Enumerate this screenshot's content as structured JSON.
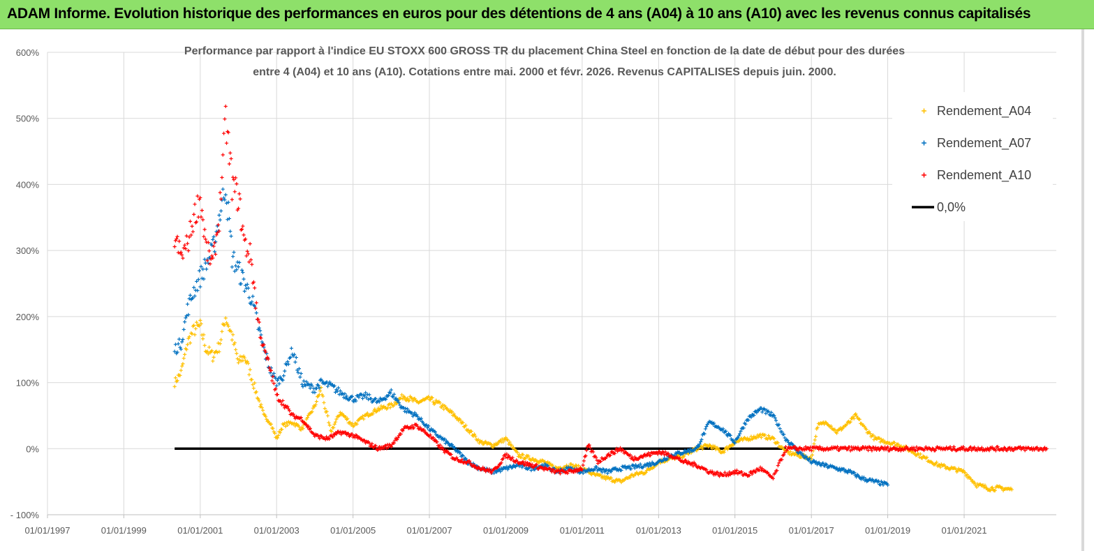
{
  "header": {
    "banner_text": "ADAM Informe. Evolution historique des performances en euros pour des détentions de 4 ans (A04) à 10 ans (A10) avec les revenus connus capitalisés"
  },
  "chart_data": {
    "type": "scatter",
    "title_line1": "Performance par rapport à l'indice EU STOXX 600 GROSS TR  du placement China Steel  en fonction de la date de début pour des durées",
    "title_line2": "entre 4 (A04) et 10 ans (A10). Cotations entre mai. 2000 et févr. 2026. Revenus CAPITALISES depuis juin. 2000.",
    "xlabel": "",
    "ylabel": "",
    "x_tick_labels": [
      "01/01/1997",
      "01/01/1999",
      "01/01/2001",
      "01/01/2003",
      "01/01/2005",
      "01/01/2007",
      "01/01/2009",
      "01/01/2011",
      "01/01/2013",
      "01/01/2015",
      "01/01/2017",
      "01/01/2019",
      "01/01/2021"
    ],
    "y_tick_labels": [
      "600%",
      "500%",
      "400%",
      "300%",
      "200%",
      "100%",
      "0%",
      "- 100%"
    ],
    "xlim": [
      "1997-01-01",
      "2023-06-01"
    ],
    "ylim": [
      -100,
      600
    ],
    "grid": true,
    "legend_position": "top-right",
    "series": [
      {
        "name": "Rendement_A04",
        "color": "#ffc000",
        "marker": "+",
        "points": [
          [
            "2000-05-01",
            100
          ],
          [
            "2000-07-01",
            115
          ],
          [
            "2000-09-01",
            160
          ],
          [
            "2000-11-01",
            180
          ],
          [
            "2001-01-01",
            185
          ],
          [
            "2001-03-01",
            150
          ],
          [
            "2001-05-01",
            140
          ],
          [
            "2001-07-01",
            155
          ],
          [
            "2001-09-01",
            200
          ],
          [
            "2001-11-01",
            170
          ],
          [
            "2002-01-01",
            130
          ],
          [
            "2002-03-01",
            140
          ],
          [
            "2002-05-01",
            110
          ],
          [
            "2002-07-01",
            80
          ],
          [
            "2002-09-01",
            50
          ],
          [
            "2002-11-01",
            40
          ],
          [
            "2003-01-01",
            15
          ],
          [
            "2003-03-01",
            35
          ],
          [
            "2003-06-01",
            40
          ],
          [
            "2003-09-01",
            30
          ],
          [
            "2004-01-01",
            65
          ],
          [
            "2004-03-01",
            90
          ],
          [
            "2004-06-01",
            25
          ],
          [
            "2004-09-01",
            55
          ],
          [
            "2005-01-01",
            35
          ],
          [
            "2005-05-01",
            50
          ],
          [
            "2005-09-01",
            60
          ],
          [
            "2006-01-01",
            65
          ],
          [
            "2006-05-01",
            80
          ],
          [
            "2006-09-01",
            70
          ],
          [
            "2007-01-01",
            75
          ],
          [
            "2007-05-01",
            65
          ],
          [
            "2007-09-01",
            50
          ],
          [
            "2008-01-01",
            30
          ],
          [
            "2008-05-01",
            10
          ],
          [
            "2008-09-01",
            5
          ],
          [
            "2009-01-01",
            15
          ],
          [
            "2009-05-01",
            -10
          ],
          [
            "2009-09-01",
            -15
          ],
          [
            "2010-01-01",
            -20
          ],
          [
            "2010-05-01",
            -30
          ],
          [
            "2010-09-01",
            -25
          ],
          [
            "2011-01-01",
            -30
          ],
          [
            "2011-05-01",
            -40
          ],
          [
            "2011-09-01",
            -45
          ],
          [
            "2012-01-01",
            -50
          ],
          [
            "2012-05-01",
            -40
          ],
          [
            "2012-09-01",
            -35
          ],
          [
            "2013-01-01",
            -20
          ],
          [
            "2013-05-01",
            -15
          ],
          [
            "2013-09-01",
            -10
          ],
          [
            "2014-01-01",
            0
          ],
          [
            "2014-05-01",
            5
          ],
          [
            "2014-09-01",
            -5
          ],
          [
            "2015-01-01",
            10
          ],
          [
            "2015-05-01",
            15
          ],
          [
            "2015-09-01",
            20
          ],
          [
            "2016-01-01",
            15
          ],
          [
            "2016-05-01",
            -5
          ],
          [
            "2016-09-01",
            -10
          ],
          [
            "2017-01-01",
            -15
          ],
          [
            "2017-03-01",
            35
          ],
          [
            "2017-06-01",
            40
          ],
          [
            "2017-09-01",
            25
          ],
          [
            "2018-01-01",
            40
          ],
          [
            "2018-03-01",
            50
          ],
          [
            "2018-06-01",
            30
          ],
          [
            "2018-09-01",
            15
          ],
          [
            "2019-01-01",
            10
          ],
          [
            "2019-05-01",
            5
          ],
          [
            "2019-09-01",
            -5
          ],
          [
            "2020-01-01",
            -15
          ],
          [
            "2020-05-01",
            -25
          ],
          [
            "2020-09-01",
            -30
          ],
          [
            "2021-01-01",
            -35
          ],
          [
            "2021-05-01",
            -55
          ],
          [
            "2021-09-01",
            -60
          ],
          [
            "2022-01-01",
            -60
          ],
          [
            "2022-04-01",
            -62
          ]
        ]
      },
      {
        "name": "Rendement_A07",
        "color": "#0070c0",
        "marker": "+",
        "points": [
          [
            "2000-05-01",
            150
          ],
          [
            "2000-07-01",
            160
          ],
          [
            "2000-09-01",
            210
          ],
          [
            "2000-11-01",
            240
          ],
          [
            "2001-01-01",
            260
          ],
          [
            "2001-03-01",
            280
          ],
          [
            "2001-05-01",
            300
          ],
          [
            "2001-07-01",
            350
          ],
          [
            "2001-09-01",
            400
          ],
          [
            "2001-11-01",
            290
          ],
          [
            "2002-01-01",
            270
          ],
          [
            "2002-03-01",
            250
          ],
          [
            "2002-05-01",
            230
          ],
          [
            "2002-07-01",
            190
          ],
          [
            "2002-09-01",
            150
          ],
          [
            "2002-11-01",
            120
          ],
          [
            "2003-01-01",
            100
          ],
          [
            "2003-03-01",
            110
          ],
          [
            "2003-06-01",
            150
          ],
          [
            "2003-09-01",
            100
          ],
          [
            "2004-01-01",
            90
          ],
          [
            "2004-03-01",
            100
          ],
          [
            "2004-06-01",
            95
          ],
          [
            "2004-09-01",
            85
          ],
          [
            "2005-01-01",
            75
          ],
          [
            "2005-05-01",
            80
          ],
          [
            "2005-09-01",
            70
          ],
          [
            "2006-01-01",
            85
          ],
          [
            "2006-05-01",
            60
          ],
          [
            "2006-09-01",
            50
          ],
          [
            "2007-01-01",
            30
          ],
          [
            "2007-05-01",
            15
          ],
          [
            "2007-09-01",
            0
          ],
          [
            "2008-01-01",
            -20
          ],
          [
            "2008-05-01",
            -30
          ],
          [
            "2008-09-01",
            -35
          ],
          [
            "2009-01-01",
            -30
          ],
          [
            "2009-05-01",
            -25
          ],
          [
            "2009-09-01",
            -30
          ],
          [
            "2010-01-01",
            -25
          ],
          [
            "2010-05-01",
            -35
          ],
          [
            "2010-09-01",
            -30
          ],
          [
            "2011-01-01",
            -35
          ],
          [
            "2011-05-01",
            -30
          ],
          [
            "2011-09-01",
            -35
          ],
          [
            "2012-01-01",
            -30
          ],
          [
            "2012-05-01",
            -28
          ],
          [
            "2012-09-01",
            -25
          ],
          [
            "2013-01-01",
            -20
          ],
          [
            "2013-05-01",
            -10
          ],
          [
            "2013-09-01",
            -5
          ],
          [
            "2014-01-01",
            0
          ],
          [
            "2014-05-01",
            40
          ],
          [
            "2014-09-01",
            30
          ],
          [
            "2015-01-01",
            10
          ],
          [
            "2015-05-01",
            45
          ],
          [
            "2015-09-01",
            60
          ],
          [
            "2016-01-01",
            50
          ],
          [
            "2016-05-01",
            15
          ],
          [
            "2016-09-01",
            -5
          ],
          [
            "2017-01-01",
            -20
          ],
          [
            "2017-05-01",
            -25
          ],
          [
            "2017-09-01",
            -30
          ],
          [
            "2018-01-01",
            -35
          ],
          [
            "2018-05-01",
            -45
          ],
          [
            "2018-09-01",
            -50
          ],
          [
            "2019-01-01",
            -55
          ]
        ]
      },
      {
        "name": "Rendement_A10",
        "color": "#ff0000",
        "marker": "+",
        "points": [
          [
            "2000-05-01",
            320
          ],
          [
            "2000-07-01",
            290
          ],
          [
            "2000-09-01",
            310
          ],
          [
            "2000-11-01",
            350
          ],
          [
            "2001-01-01",
            380
          ],
          [
            "2001-03-01",
            300
          ],
          [
            "2001-05-01",
            280
          ],
          [
            "2001-07-01",
            350
          ],
          [
            "2001-09-01",
            500
          ],
          [
            "2001-11-01",
            400
          ],
          [
            "2002-01-01",
            380
          ],
          [
            "2002-03-01",
            310
          ],
          [
            "2002-05-01",
            290
          ],
          [
            "2002-07-01",
            200
          ],
          [
            "2002-09-01",
            150
          ],
          [
            "2002-11-01",
            120
          ],
          [
            "2003-01-01",
            80
          ],
          [
            "2003-03-01",
            70
          ],
          [
            "2003-06-01",
            50
          ],
          [
            "2003-09-01",
            45
          ],
          [
            "2004-01-01",
            20
          ],
          [
            "2004-05-01",
            15
          ],
          [
            "2004-09-01",
            25
          ],
          [
            "2005-01-01",
            20
          ],
          [
            "2005-05-01",
            10
          ],
          [
            "2005-09-01",
            0
          ],
          [
            "2006-01-01",
            5
          ],
          [
            "2006-05-01",
            30
          ],
          [
            "2006-09-01",
            35
          ],
          [
            "2007-01-01",
            20
          ],
          [
            "2007-05-01",
            0
          ],
          [
            "2007-09-01",
            -15
          ],
          [
            "2008-01-01",
            -20
          ],
          [
            "2008-05-01",
            -30
          ],
          [
            "2008-09-01",
            -35
          ],
          [
            "2009-01-01",
            -10
          ],
          [
            "2009-05-01",
            -20
          ],
          [
            "2009-09-01",
            -25
          ],
          [
            "2010-01-01",
            -30
          ],
          [
            "2010-05-01",
            -35
          ],
          [
            "2010-09-01",
            -35
          ],
          [
            "2011-01-01",
            -30
          ],
          [
            "2011-03-01",
            5
          ],
          [
            "2011-06-01",
            -20
          ],
          [
            "2011-09-01",
            -10
          ],
          [
            "2012-01-01",
            0
          ],
          [
            "2012-05-01",
            -15
          ],
          [
            "2012-09-01",
            -10
          ],
          [
            "2013-01-01",
            -5
          ],
          [
            "2013-05-01",
            -10
          ],
          [
            "2013-09-01",
            -20
          ],
          [
            "2014-01-01",
            -25
          ],
          [
            "2014-05-01",
            -35
          ],
          [
            "2014-09-01",
            -40
          ],
          [
            "2015-01-01",
            -35
          ],
          [
            "2015-05-01",
            -40
          ],
          [
            "2015-09-01",
            -30
          ],
          [
            "2016-01-01",
            -45
          ],
          [
            "2016-05-01",
            0
          ],
          [
            "2017-01-01",
            0
          ],
          [
            "2018-01-01",
            0
          ],
          [
            "2019-01-01",
            0
          ],
          [
            "2020-01-01",
            0
          ],
          [
            "2021-01-01",
            0
          ],
          [
            "2022-01-01",
            0
          ],
          [
            "2023-03-01",
            0
          ]
        ]
      },
      {
        "name": "0,0%",
        "color": "#000000",
        "marker": "line",
        "points": [
          [
            "2000-05-01",
            0
          ],
          [
            "2016-05-01",
            0
          ]
        ]
      }
    ]
  }
}
